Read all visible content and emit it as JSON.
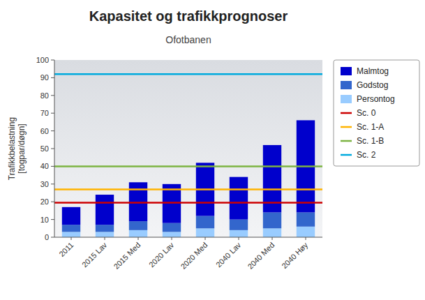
{
  "chart_data": {
    "type": "bar",
    "stacked": true,
    "title": "Kapasitet og trafikkprognoser",
    "subtitle": "Ofotbanen",
    "ylabel": "Trafikkbelastning\n[togpar/døgn]",
    "categories": [
      "2011",
      "2015 Lav",
      "2015 Med",
      "2020 Lav",
      "2020 Med",
      "2040 Lav",
      "2040 Med",
      "2040 Høy"
    ],
    "series": [
      {
        "name": "Malmtog",
        "color": "#0000CC",
        "values": [
          10,
          17,
          22,
          22,
          30,
          24,
          38,
          52
        ]
      },
      {
        "name": "Godstog",
        "color": "#3366CC",
        "values": [
          4,
          4,
          5,
          5,
          7,
          6,
          9,
          8
        ]
      },
      {
        "name": "Persontog",
        "color": "#99CCFF",
        "values": [
          3,
          3,
          4,
          3,
          5,
          4,
          5,
          6
        ]
      }
    ],
    "reference_lines": [
      {
        "name": "Sc. 0",
        "value": 19.5,
        "color": "#CC0000"
      },
      {
        "name": "Sc. 1-A",
        "value": 27,
        "color": "#FFB300"
      },
      {
        "name": "Sc. 1-B",
        "value": 40,
        "color": "#7CB342"
      },
      {
        "name": "Sc. 2",
        "value": 92,
        "color": "#00AADD"
      }
    ],
    "ylim": [
      0,
      100
    ],
    "yticks": [
      0,
      10,
      20,
      30,
      40,
      50,
      60,
      70,
      80,
      90,
      100
    ],
    "legend": "right"
  }
}
